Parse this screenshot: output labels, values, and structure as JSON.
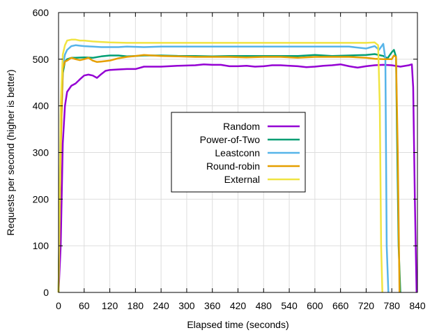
{
  "chart_data": {
    "type": "line",
    "xlabel": "Elapsed time (seconds)",
    "ylabel": "Requests per second (higher is better)",
    "xlim": [
      0,
      840
    ],
    "ylim": [
      0,
      600
    ],
    "xticks": [
      0,
      60,
      120,
      180,
      240,
      300,
      360,
      420,
      480,
      540,
      600,
      660,
      720,
      780,
      840
    ],
    "yticks": [
      0,
      100,
      200,
      300,
      400,
      500,
      600
    ],
    "xtick_labels": [
      "0",
      "60",
      "120",
      "180",
      "240",
      "300",
      "360",
      "420",
      "480",
      "540",
      "600",
      "660",
      "720",
      "780",
      "840"
    ],
    "ytick_labels": [
      "0",
      "100",
      "200",
      "300",
      "400",
      "500",
      "600"
    ],
    "grid": true,
    "legend_position": "center",
    "series": [
      {
        "name": "Random",
        "color": "#9400d3",
        "x": [
          0,
          5,
          10,
          15,
          20,
          30,
          40,
          50,
          60,
          70,
          80,
          90,
          100,
          110,
          120,
          140,
          160,
          180,
          200,
          240,
          280,
          320,
          340,
          360,
          380,
          400,
          420,
          440,
          460,
          480,
          500,
          520,
          540,
          560,
          580,
          600,
          620,
          640,
          660,
          680,
          700,
          720,
          740,
          760,
          780,
          800,
          820,
          827,
          830,
          834,
          838
        ],
        "y": [
          0,
          100,
          320,
          400,
          430,
          443,
          448,
          457,
          465,
          467,
          465,
          460,
          468,
          475,
          477,
          478,
          479,
          479,
          484,
          484,
          486,
          487,
          489,
          488,
          488,
          485,
          485,
          486,
          484,
          485,
          487,
          487,
          486,
          485,
          483,
          484,
          486,
          487,
          489,
          485,
          482,
          485,
          487,
          488,
          487,
          484,
          487,
          489,
          440,
          200,
          0
        ]
      },
      {
        "name": "Power-of-Two",
        "color": "#009e73",
        "x": [
          0,
          5,
          10,
          15,
          20,
          30,
          40,
          60,
          80,
          100,
          120,
          140,
          160,
          180,
          200,
          240,
          280,
          320,
          360,
          400,
          440,
          480,
          520,
          560,
          600,
          640,
          680,
          720,
          740,
          760,
          770,
          780,
          785,
          790,
          792,
          796,
          800
        ],
        "y": [
          0,
          330,
          470,
          495,
          500,
          503,
          503,
          504,
          503,
          506,
          508,
          508,
          506,
          507,
          508,
          508,
          507,
          507,
          506,
          507,
          507,
          507,
          507,
          507,
          509,
          507,
          508,
          509,
          511,
          507,
          502,
          515,
          520,
          505,
          350,
          100,
          0
        ]
      },
      {
        "name": "Leastconn",
        "color": "#56b4e9",
        "x": [
          0,
          5,
          10,
          15,
          20,
          30,
          40,
          50,
          60,
          80,
          100,
          120,
          140,
          160,
          200,
          240,
          280,
          320,
          360,
          400,
          440,
          480,
          520,
          560,
          600,
          640,
          680,
          720,
          740,
          750,
          760,
          765,
          768,
          772
        ],
        "y": [
          0,
          380,
          485,
          510,
          520,
          528,
          530,
          529,
          528,
          527,
          526,
          526,
          526,
          527,
          526,
          527,
          527,
          527,
          527,
          527,
          527,
          527,
          527,
          527,
          527,
          527,
          527,
          523,
          528,
          520,
          533,
          500,
          100,
          0
        ]
      },
      {
        "name": "Round-robin",
        "color": "#e69f00",
        "x": [
          0,
          5,
          10,
          15,
          20,
          30,
          40,
          50,
          60,
          70,
          80,
          90,
          100,
          120,
          140,
          160,
          180,
          200,
          240,
          280,
          320,
          360,
          400,
          440,
          480,
          520,
          560,
          600,
          640,
          680,
          720,
          740,
          760,
          780,
          785,
          790,
          794,
          798
        ],
        "y": [
          0,
          310,
          480,
          495,
          497,
          503,
          500,
          498,
          500,
          503,
          497,
          494,
          495,
          497,
          502,
          505,
          507,
          509,
          507,
          506,
          505,
          505,
          505,
          504,
          505,
          505,
          503,
          505,
          505,
          505,
          503,
          501,
          500,
          500,
          508,
          505,
          300,
          0
        ]
      },
      {
        "name": "External",
        "color": "#f0e442",
        "x": [
          0,
          5,
          10,
          15,
          20,
          30,
          40,
          50,
          60,
          80,
          100,
          120,
          160,
          200,
          240,
          280,
          320,
          360,
          400,
          440,
          480,
          520,
          560,
          600,
          640,
          680,
          720,
          740,
          748,
          752,
          755,
          758
        ],
        "y": [
          0,
          400,
          510,
          530,
          540,
          542,
          542,
          540,
          540,
          538,
          537,
          536,
          535,
          535,
          535,
          535,
          535,
          535,
          535,
          535,
          535,
          535,
          535,
          535,
          535,
          535,
          535,
          536,
          530,
          400,
          100,
          0
        ]
      }
    ]
  }
}
